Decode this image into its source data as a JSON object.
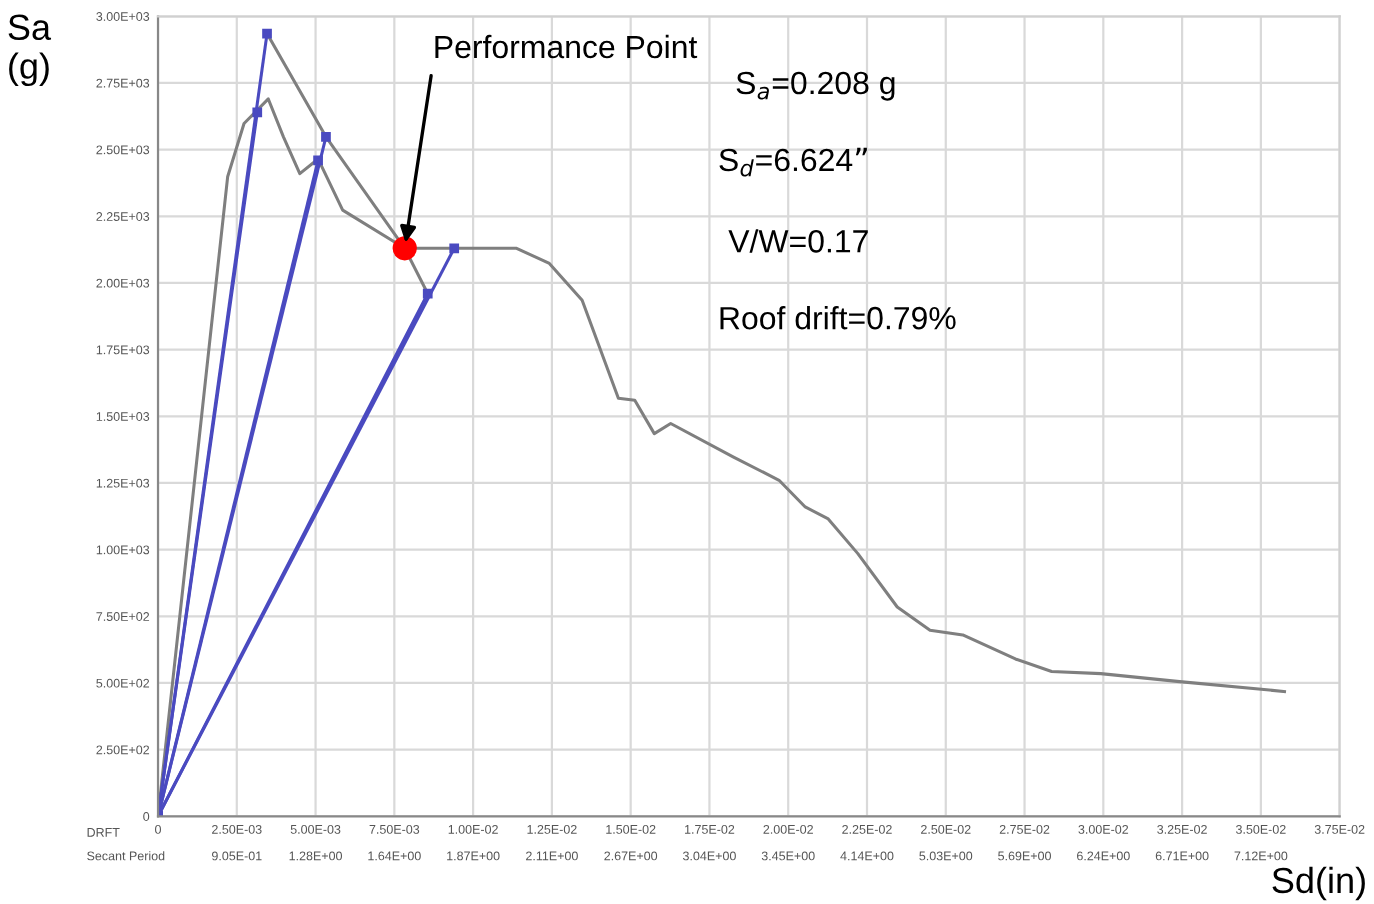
{
  "chart_data": {
    "type": "line",
    "xlabel": "Sd(in)",
    "ylabel": "Sa\n(g)",
    "xlim": [
      0,
      0.0375
    ],
    "ylim": [
      0,
      3000
    ],
    "xticks": [
      {
        "value": 0,
        "label": "0"
      },
      {
        "value": 0.0025,
        "label": "2.50E-03"
      },
      {
        "value": 0.005,
        "label": "5.00E-03"
      },
      {
        "value": 0.0075,
        "label": "7.50E-03"
      },
      {
        "value": 0.01,
        "label": "1.00E-02"
      },
      {
        "value": 0.0125,
        "label": "1.25E-02"
      },
      {
        "value": 0.015,
        "label": "1.50E-02"
      },
      {
        "value": 0.0175,
        "label": "1.75E-02"
      },
      {
        "value": 0.02,
        "label": "2.00E-02"
      },
      {
        "value": 0.0225,
        "label": "2.25E-02"
      },
      {
        "value": 0.025,
        "label": "2.50E-02"
      },
      {
        "value": 0.0275,
        "label": "2.75E-02"
      },
      {
        "value": 0.03,
        "label": "3.00E-02"
      },
      {
        "value": 0.0325,
        "label": "3.25E-02"
      },
      {
        "value": 0.035,
        "label": "3.50E-02"
      },
      {
        "value": 0.0375,
        "label": "3.75E-02"
      }
    ],
    "yticks": [
      0,
      {
        "value": 250,
        "label": "2.50E+02"
      },
      {
        "value": 500,
        "label": "5.00E+02"
      },
      {
        "value": 750,
        "label": "7.50E+02"
      },
      {
        "value": 1000,
        "label": "1.00E+03"
      },
      {
        "value": 1250,
        "label": "1.25E+03"
      },
      {
        "value": 1500,
        "label": "1.50E+03"
      },
      {
        "value": 1750,
        "label": "1.75E+03"
      },
      {
        "value": 2000,
        "label": "2.00E+03"
      },
      {
        "value": 2250,
        "label": "2.25E+03"
      },
      {
        "value": 2500,
        "label": "2.50E+03"
      },
      {
        "value": 2750,
        "label": "2.75E+03"
      },
      {
        "value": 3000,
        "label": "3.00E+03"
      }
    ],
    "grid": true,
    "legend": false,
    "series": [
      {
        "color": "#7f7f7f",
        "x": [
          0,
          0.00221,
          0.00273,
          0.0035,
          0.00398,
          0.0045,
          0.00508,
          0.00586,
          0.00783,
          0.01138,
          0.01242,
          0.01346,
          0.01461,
          0.01513,
          0.01575,
          0.01627,
          0.01825,
          0.01971,
          0.02054,
          0.02127,
          0.02221,
          0.02346,
          0.0245,
          0.02554,
          0.02721,
          0.02836,
          0.02992,
          0.03242,
          0.03575
        ],
        "values": [
          0,
          2398,
          2598,
          2690,
          2548,
          2410,
          2465,
          2273,
          2130,
          2130,
          2073,
          1935,
          1568,
          1560,
          1435,
          1473,
          1348,
          1260,
          1160,
          1115,
          985,
          785,
          698,
          680,
          590,
          543,
          535,
          505,
          468
        ]
      },
      {
        "color": "#7f7f7f",
        "x": [
          0.00346,
          0.00533,
          0.00783,
          0.00856
        ],
        "values": [
          2935,
          2548,
          2130,
          1960
        ]
      },
      {
        "color": "#4a4ac0",
        "marker": "square",
        "x": [
          0,
          0.00315
        ],
        "values": [
          0,
          2640
        ]
      },
      {
        "color": "#4a4ac0",
        "marker": "square",
        "x": [
          0,
          0.00346
        ],
        "values": [
          0,
          2935
        ]
      },
      {
        "color": "#4a4ac0",
        "marker": "square",
        "x": [
          0,
          0.00508
        ],
        "values": [
          0,
          2460
        ]
      },
      {
        "color": "#4a4ac0",
        "marker": "square",
        "x": [
          0,
          0.00533
        ],
        "values": [
          0,
          2548
        ]
      },
      {
        "color": "#4a4ac0",
        "marker": "square",
        "x": [
          0,
          0.00856
        ],
        "values": [
          0,
          1960
        ]
      },
      {
        "color": "#4a4ac0",
        "marker": "square",
        "x": [
          0,
          0.0094
        ],
        "values": [
          0,
          2130
        ]
      },
      {
        "type": "scatter",
        "color": "#ff0000",
        "marker": "circle",
        "x": [
          0.00783
        ],
        "values": [
          2130
        ]
      }
    ],
    "annotations": [
      {
        "text": "Performance Point",
        "x": 0.00783,
        "y": 2130
      },
      "S$_{a}$=0.208 g",
      "S$_{d}$=6.624”",
      "V/W=0.17",
      "Roof drift=0.79%",
      "DRFT",
      "Secant Period",
      "9.05E-01",
      "1.28E+00",
      "1.64E+00",
      "1.87E+00",
      "2.11E+00",
      "2.67E+00",
      "3.04E+00",
      "3.45E+00",
      "4.14E+00",
      "5.03E+00",
      "5.69E+00",
      "6.24E+00",
      "6.71E+00",
      "7.12E+00"
    ]
  }
}
